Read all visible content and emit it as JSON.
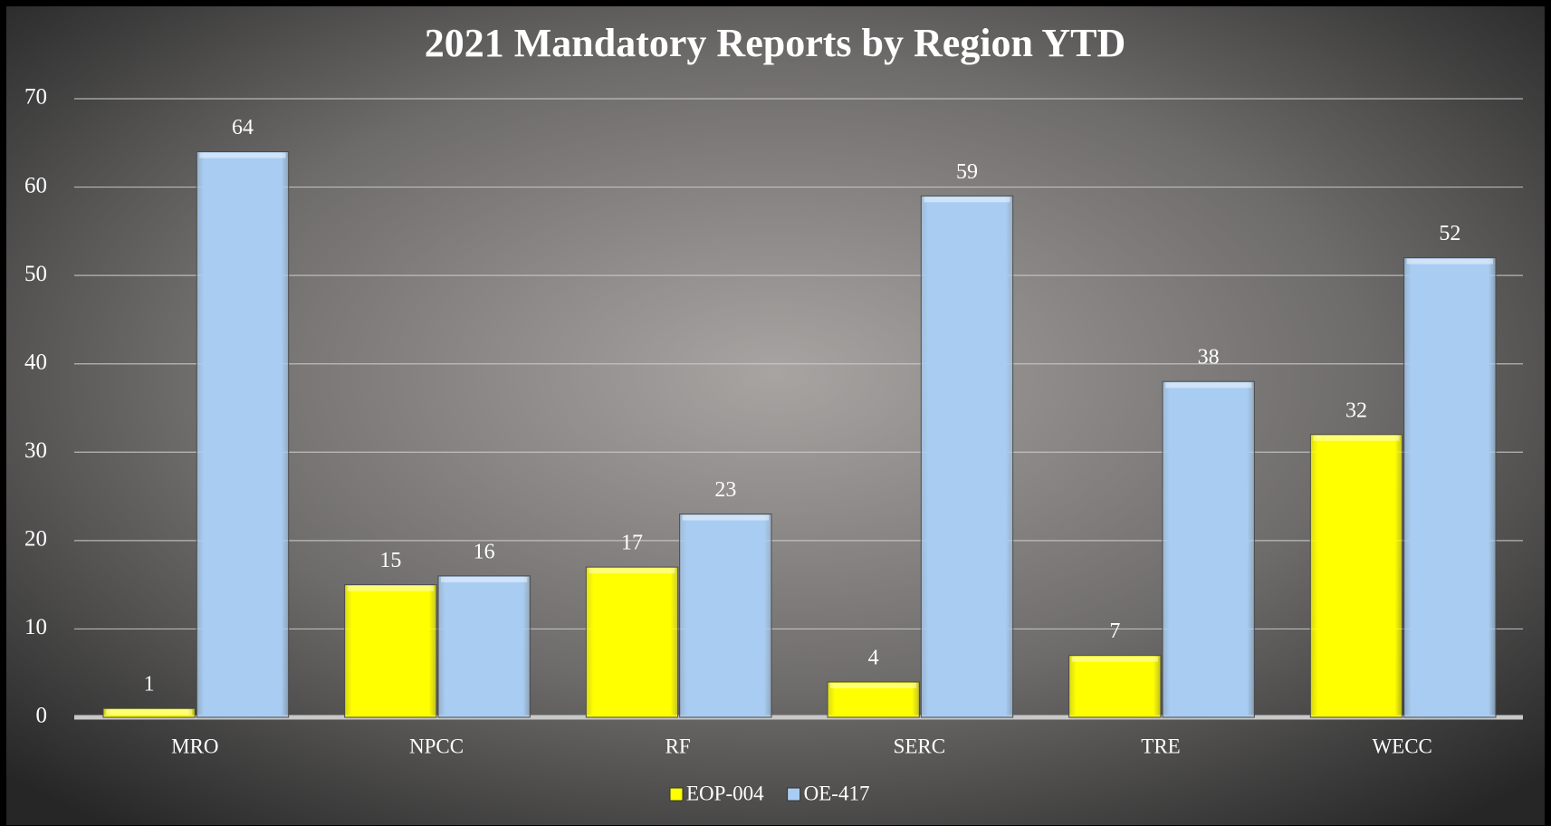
{
  "chart_data": {
    "type": "bar",
    "title": "2021 Mandatory Reports by Region YTD",
    "categories": [
      "MRO",
      "NPCC",
      "RF",
      "SERC",
      "TRE",
      "WECC"
    ],
    "series": [
      {
        "name": "EOP-004",
        "color": "#ffff00",
        "values": [
          1,
          15,
          17,
          4,
          7,
          32
        ]
      },
      {
        "name": "OE-417",
        "color": "#a9cdf2",
        "values": [
          64,
          16,
          23,
          59,
          38,
          52
        ]
      }
    ],
    "ylim": [
      0,
      70
    ],
    "yticks": [
      0,
      10,
      20,
      30,
      40,
      50,
      60,
      70
    ],
    "grid": true,
    "legend": "bottom"
  }
}
